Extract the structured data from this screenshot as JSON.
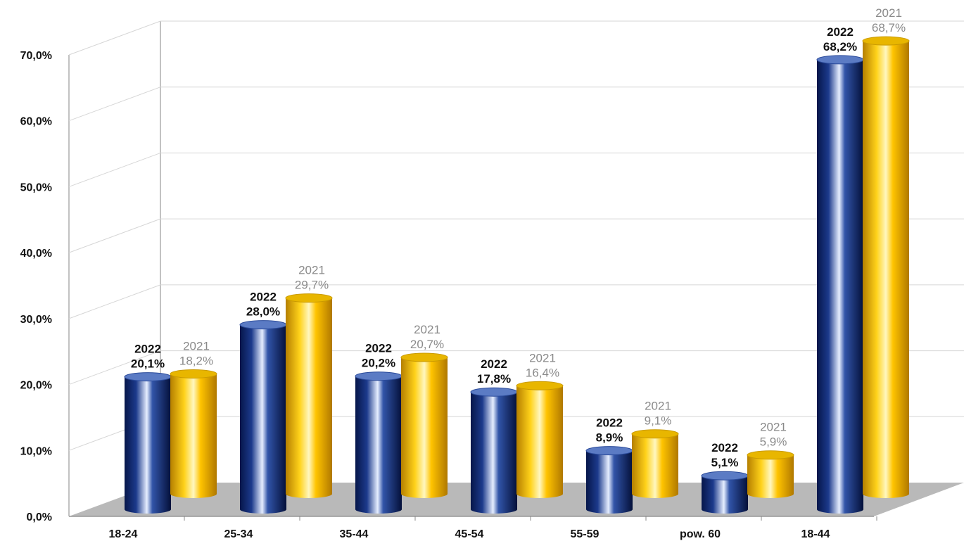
{
  "chart_data": {
    "type": "bar",
    "categories": [
      "18-24",
      "25-34",
      "35-44",
      "45-54",
      "55-59",
      "pow. 60",
      "18-44"
    ],
    "series": [
      {
        "year_label": "2022",
        "values": [
          20.1,
          28.0,
          20.2,
          17.8,
          8.9,
          5.1,
          68.2
        ],
        "data_labels": [
          "20,1%",
          "28,0%",
          "20,2%",
          "17,8%",
          "8,9%",
          "5,1%",
          "68,2%"
        ],
        "color": "#0d2466"
      },
      {
        "year_label": "2021",
        "values": [
          18.2,
          29.7,
          20.7,
          16.4,
          9.1,
          5.9,
          68.7
        ],
        "data_labels": [
          "18,2%",
          "29,7%",
          "20,7%",
          "16,4%",
          "9,1%",
          "5,9%",
          "68,7%"
        ],
        "color": "#f2b600"
      }
    ],
    "y_ticks": [
      "0,0%",
      "10,0%",
      "20,0%",
      "30,0%",
      "40,0%",
      "50,0%",
      "60,0%",
      "70,0%"
    ],
    "ylim": [
      0,
      70
    ],
    "grid": true,
    "legend": "none"
  }
}
